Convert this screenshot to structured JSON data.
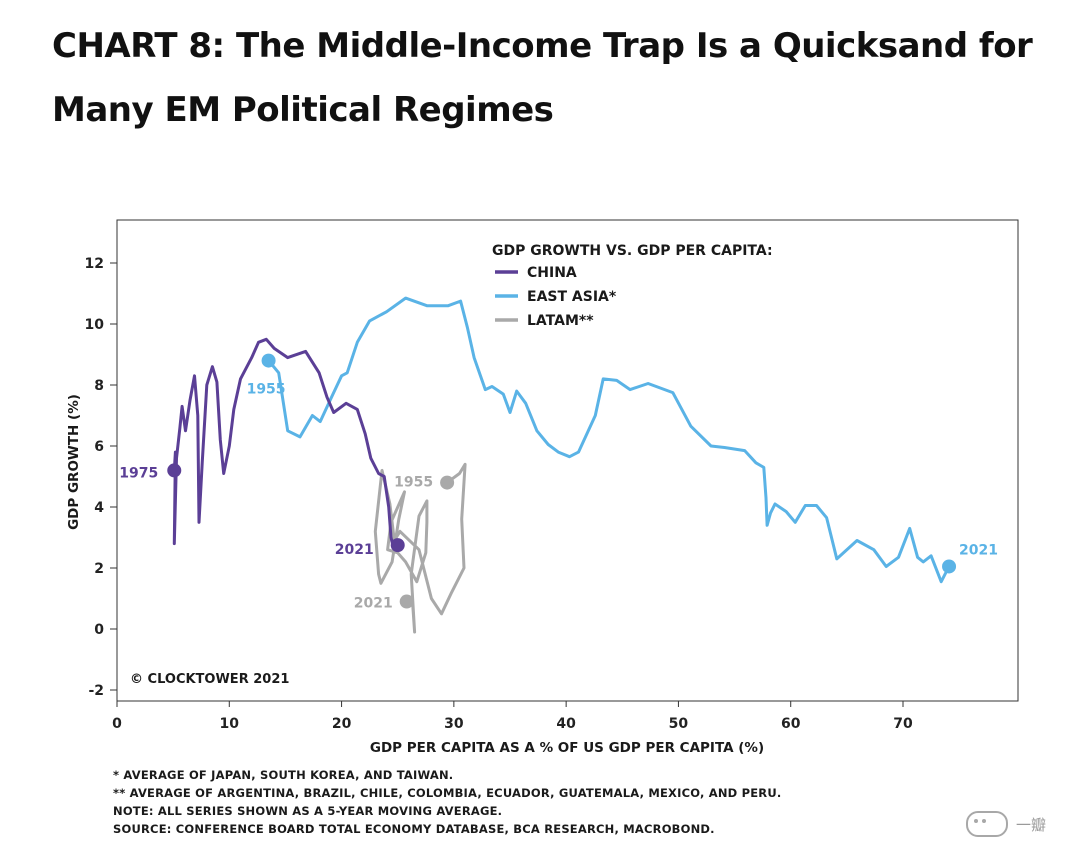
{
  "title": {
    "line1": "CHART 8: The Middle-Income Trap Is a Quicksand for",
    "line2": "Many EM Political Regimes"
  },
  "chart_data": {
    "type": "line",
    "legend_title": "GDP GROWTH VS. GDP PER CAPITA:",
    "xlabel": "GDP PER CAPITA AS A % OF US GDP PER CAPITA (%)",
    "ylabel": "GDP GROWTH (%)",
    "xlim": [
      0,
      80
    ],
    "ylim": [
      -2,
      13
    ],
    "xticks": [
      0,
      10,
      20,
      30,
      40,
      50,
      60,
      70
    ],
    "yticks": [
      -2,
      0,
      2,
      4,
      6,
      8,
      10,
      12
    ],
    "copyright": "© CLOCKTOWER 2021",
    "series": [
      {
        "name": "CHINA",
        "color": "#5b3f96",
        "start_label": "1975",
        "end_label": "2021",
        "points": [
          [
            5.1,
            5.2
          ],
          [
            5.2,
            5.8
          ],
          [
            5.1,
            2.8
          ],
          [
            5.3,
            5.6
          ],
          [
            5.6,
            6.6
          ],
          [
            5.8,
            7.3
          ],
          [
            6.1,
            6.5
          ],
          [
            6.5,
            7.5
          ],
          [
            6.9,
            8.3
          ],
          [
            7.2,
            7.0
          ],
          [
            7.3,
            3.5
          ],
          [
            7.6,
            5.5
          ],
          [
            8.0,
            8.0
          ],
          [
            8.5,
            8.6
          ],
          [
            8.9,
            8.1
          ],
          [
            9.2,
            6.2
          ],
          [
            9.5,
            5.1
          ],
          [
            10.0,
            6.0
          ],
          [
            10.4,
            7.2
          ],
          [
            11.0,
            8.2
          ],
          [
            12.0,
            8.9
          ],
          [
            12.6,
            9.4
          ],
          [
            13.3,
            9.5
          ],
          [
            14.0,
            9.2
          ],
          [
            15.2,
            8.9
          ],
          [
            16.8,
            9.1
          ],
          [
            18.0,
            8.4
          ],
          [
            18.7,
            7.6
          ],
          [
            19.3,
            7.1
          ],
          [
            20.4,
            7.4
          ],
          [
            21.4,
            7.2
          ],
          [
            22.1,
            6.4
          ],
          [
            22.6,
            5.6
          ],
          [
            23.3,
            5.1
          ],
          [
            23.8,
            5.0
          ],
          [
            24.2,
            4.0
          ],
          [
            24.4,
            3.0
          ],
          [
            24.6,
            2.7
          ],
          [
            25.0,
            2.75
          ]
        ]
      },
      {
        "name": "EAST ASIA*",
        "color": "#5ab3e6",
        "start_label": "1955",
        "end_label": "2021",
        "points": [
          [
            13.5,
            8.8
          ],
          [
            14.4,
            8.4
          ],
          [
            15.2,
            6.5
          ],
          [
            16.3,
            6.3
          ],
          [
            17.4,
            7.0
          ],
          [
            18.1,
            6.8
          ],
          [
            19.1,
            7.6
          ],
          [
            20.0,
            8.3
          ],
          [
            20.5,
            8.4
          ],
          [
            21.4,
            9.4
          ],
          [
            22.5,
            10.1
          ],
          [
            24.0,
            10.4
          ],
          [
            25.7,
            10.85
          ],
          [
            27.6,
            10.6
          ],
          [
            29.5,
            10.6
          ],
          [
            30.6,
            10.75
          ],
          [
            31.2,
            9.9
          ],
          [
            31.8,
            8.9
          ],
          [
            32.8,
            7.85
          ],
          [
            33.4,
            7.95
          ],
          [
            34.4,
            7.7
          ],
          [
            35.0,
            7.1
          ],
          [
            35.6,
            7.8
          ],
          [
            36.4,
            7.4
          ],
          [
            37.4,
            6.5
          ],
          [
            38.4,
            6.05
          ],
          [
            39.3,
            5.8
          ],
          [
            40.3,
            5.65
          ],
          [
            41.1,
            5.8
          ],
          [
            42.6,
            7.0
          ],
          [
            43.3,
            8.2
          ],
          [
            44.5,
            8.15
          ],
          [
            45.7,
            7.85
          ],
          [
            47.3,
            8.05
          ],
          [
            49.5,
            7.75
          ],
          [
            51.1,
            6.65
          ],
          [
            52.9,
            6.0
          ],
          [
            54.1,
            5.95
          ],
          [
            55.9,
            5.85
          ],
          [
            56.9,
            5.45
          ],
          [
            57.6,
            5.3
          ],
          [
            57.8,
            4.3
          ],
          [
            57.9,
            3.4
          ],
          [
            58.2,
            3.8
          ],
          [
            58.6,
            4.1
          ],
          [
            59.6,
            3.85
          ],
          [
            60.4,
            3.5
          ],
          [
            61.3,
            4.05
          ],
          [
            62.3,
            4.05
          ],
          [
            63.2,
            3.65
          ],
          [
            64.1,
            2.3
          ],
          [
            65.9,
            2.9
          ],
          [
            67.4,
            2.6
          ],
          [
            68.5,
            2.05
          ],
          [
            69.6,
            2.35
          ],
          [
            70.6,
            3.3
          ],
          [
            71.3,
            2.35
          ],
          [
            71.8,
            2.2
          ],
          [
            72.5,
            2.4
          ],
          [
            73.4,
            1.55
          ],
          [
            74.1,
            2.05
          ]
        ]
      },
      {
        "name": "LATAM**",
        "color": "#a9a9a9",
        "start_label": "1955",
        "end_label": "2021",
        "points": [
          [
            29.4,
            4.8
          ],
          [
            30.5,
            5.1
          ],
          [
            31.0,
            5.4
          ],
          [
            30.7,
            3.6
          ],
          [
            30.9,
            2.0
          ],
          [
            29.8,
            1.2
          ],
          [
            28.9,
            0.5
          ],
          [
            28.0,
            1.0
          ],
          [
            26.9,
            2.6
          ],
          [
            25.2,
            3.2
          ],
          [
            24.7,
            2.9
          ],
          [
            24.3,
            4.1
          ],
          [
            23.6,
            5.2
          ],
          [
            23.0,
            3.2
          ],
          [
            23.3,
            1.8
          ],
          [
            23.5,
            1.5
          ],
          [
            24.5,
            2.2
          ],
          [
            25.1,
            3.6
          ],
          [
            25.6,
            4.5
          ],
          [
            24.4,
            3.5
          ],
          [
            24.1,
            2.6
          ],
          [
            25.0,
            2.5
          ],
          [
            25.7,
            2.2
          ],
          [
            26.7,
            1.55
          ],
          [
            27.5,
            2.5
          ],
          [
            27.6,
            3.5
          ],
          [
            27.6,
            4.2
          ],
          [
            26.9,
            3.7
          ],
          [
            26.2,
            1.8
          ],
          [
            26.5,
            -0.1
          ],
          [
            26.3,
            1.0
          ],
          [
            25.8,
            0.9
          ]
        ]
      }
    ]
  },
  "notes": [
    "* AVERAGE OF JAPAN, SOUTH KOREA, AND TAIWAN.",
    "** AVERAGE OF ARGENTINA, BRAZIL, CHILE, COLOMBIA, ECUADOR, GUATEMALA, MEXICO, AND PERU.",
    "NOTE: ALL SERIES SHOWN AS A 5-YEAR MOVING AVERAGE.",
    "SOURCE: CONFERENCE BOARD TOTAL ECONOMY DATABASE, BCA RESEARCH, MACROBOND."
  ],
  "watermark": "一瓣"
}
